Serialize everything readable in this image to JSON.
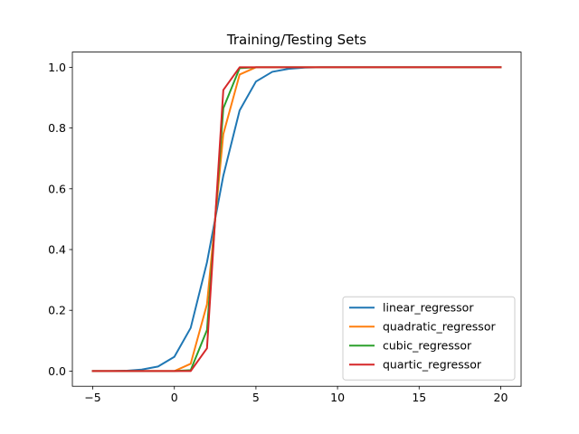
{
  "chart_data": {
    "type": "line",
    "title": "Training/Testing Sets",
    "xlabel": "",
    "ylabel": "",
    "xlim": [
      -6.25,
      21.25
    ],
    "ylim": [
      -0.05,
      1.05
    ],
    "xticks": [
      -5,
      0,
      5,
      10,
      15,
      20
    ],
    "xtick_labels": [
      "−5",
      "0",
      "5",
      "10",
      "15",
      "20"
    ],
    "yticks": [
      0.0,
      0.2,
      0.4,
      0.6,
      0.8,
      1.0
    ],
    "ytick_labels": [
      "0.0",
      "0.2",
      "0.4",
      "0.6",
      "0.8",
      "1.0"
    ],
    "grid": false,
    "legend_position": "lower-right",
    "x": [
      -5,
      -4,
      -3,
      -2,
      -1,
      0,
      1,
      2,
      3,
      4,
      5,
      6,
      7,
      8,
      9,
      10,
      11,
      12,
      13,
      14,
      15,
      16,
      17,
      18,
      19,
      20
    ],
    "series": [
      {
        "name": "linear_regressor",
        "color": "#1f77b4",
        "values": [
          0.0,
          0.0,
          0.001,
          0.005,
          0.015,
          0.047,
          0.142,
          0.358,
          0.643,
          0.858,
          0.953,
          0.985,
          0.995,
          0.999,
          1.0,
          1.0,
          1.0,
          1.0,
          1.0,
          1.0,
          1.0,
          1.0,
          1.0,
          1.0,
          1.0,
          1.0
        ]
      },
      {
        "name": "quadratic_regressor",
        "color": "#ff7f0e",
        "values": [
          0.0,
          0.0,
          0.0,
          0.0,
          0.0,
          0.0,
          0.024,
          0.22,
          0.78,
          0.976,
          1.0,
          1.0,
          1.0,
          1.0,
          1.0,
          1.0,
          1.0,
          1.0,
          1.0,
          1.0,
          1.0,
          1.0,
          1.0,
          1.0,
          1.0,
          1.0
        ]
      },
      {
        "name": "cubic_regressor",
        "color": "#2ca02c",
        "values": [
          0.0,
          0.0,
          0.0,
          0.0,
          0.0,
          0.0,
          0.003,
          0.135,
          0.865,
          0.997,
          1.0,
          1.0,
          1.0,
          1.0,
          1.0,
          1.0,
          1.0,
          1.0,
          1.0,
          1.0,
          1.0,
          1.0,
          1.0,
          1.0,
          1.0,
          1.0
        ]
      },
      {
        "name": "quartic_regressor",
        "color": "#d62728",
        "values": [
          0.0,
          0.0,
          0.0,
          0.0,
          0.0,
          0.0,
          0.0,
          0.075,
          0.925,
          1.0,
          1.0,
          1.0,
          1.0,
          1.0,
          1.0,
          1.0,
          1.0,
          1.0,
          1.0,
          1.0,
          1.0,
          1.0,
          1.0,
          1.0,
          1.0,
          1.0
        ]
      }
    ]
  }
}
